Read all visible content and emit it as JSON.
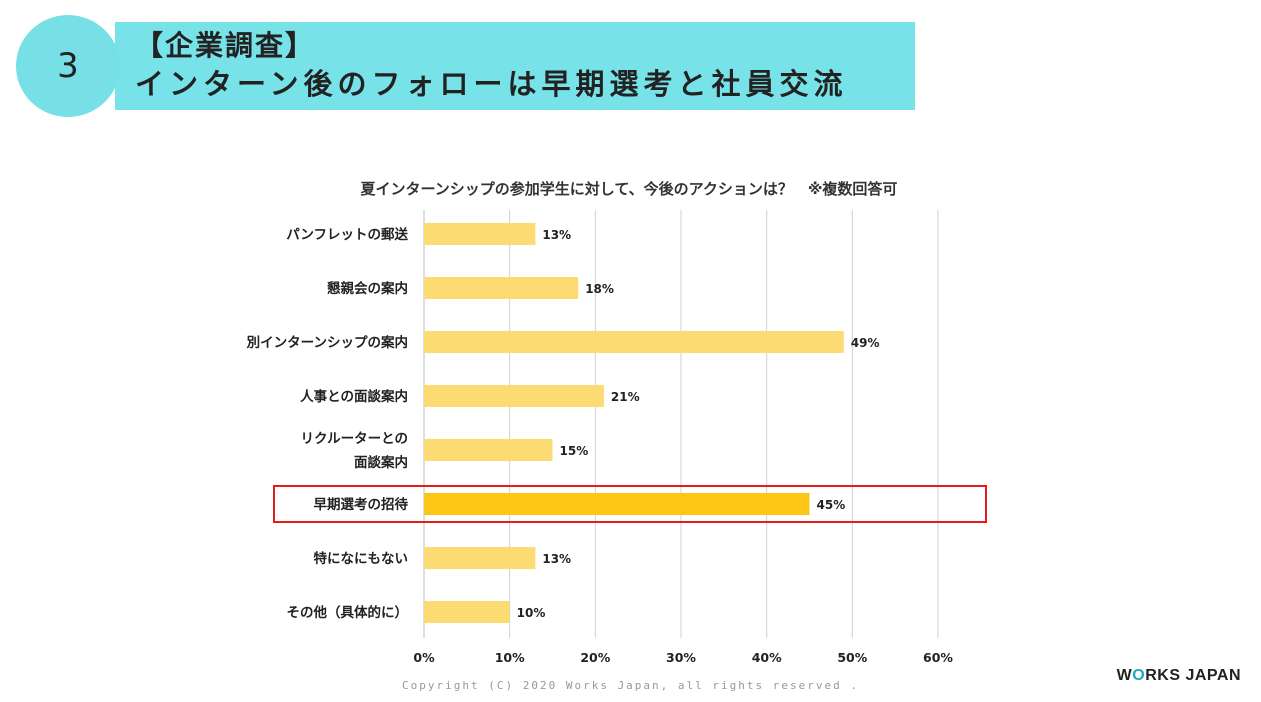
{
  "slide": {
    "number": "3",
    "title_line1": "【企業調査】",
    "title_line2": "インターン後のフォローは早期選考と社員交流",
    "copyright": "Copyright (C) 2020 Works Japan, all rights reserved .",
    "brand_pre": "W",
    "brand_o": "O",
    "brand_post": "RKS JAPAN"
  },
  "chart_data": {
    "type": "bar",
    "orientation": "horizontal",
    "title": "夏インターンシップの参加学生に対して、今後のアクションは？　※複数回答可",
    "categories": [
      [
        "パンフレットの郵送"
      ],
      [
        "懇親会の案内"
      ],
      [
        "別インターンシップの案内"
      ],
      [
        "人事との面談案内"
      ],
      [
        "リクルーターとの",
        "面談案内"
      ],
      [
        "早期選考の招待"
      ],
      [
        "特になにもない"
      ],
      [
        "その他（具体的に）"
      ]
    ],
    "values": [
      13,
      18,
      49,
      21,
      15,
      45,
      13,
      10
    ],
    "value_labels": [
      "13%",
      "18%",
      "49%",
      "21%",
      "15%",
      "45%",
      "13%",
      "10%"
    ],
    "xlim": [
      0,
      60
    ],
    "xticks": [
      0,
      10,
      20,
      30,
      40,
      50,
      60
    ],
    "xtick_labels": [
      "0%",
      "10%",
      "20%",
      "30%",
      "40%",
      "50%",
      "60%"
    ],
    "grid": true,
    "highlight_index": 5,
    "colors": {
      "bar": "#fbdb72",
      "bar_highlight": "#fdc515",
      "highlight_box": "#e21d1d",
      "grid": "#d0d0d0"
    }
  }
}
